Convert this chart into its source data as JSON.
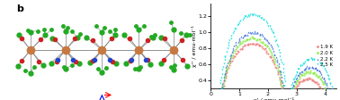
{
  "title": "",
  "xlabel": "χ' / emu·mol⁻¹",
  "ylabel": "χ'' / emu·mol⁻¹",
  "xlim": [
    0.0,
    4.4
  ],
  "ylim": [
    0.3,
    1.35
  ],
  "legend_labels": [
    "1.9 K",
    "2.0 K",
    "2.2 K",
    "2.5 K"
  ],
  "legend_colors": [
    "#f08080",
    "#90ee40",
    "#4169e1",
    "#00eeee"
  ],
  "legend_markers": [
    "o",
    "o",
    "^",
    "v"
  ],
  "xticks": [
    0,
    1,
    2,
    3,
    4
  ],
  "yticks": [
    0.4,
    0.6,
    0.8,
    1.0,
    1.2
  ],
  "label_b": "b",
  "figsize": [
    3.78,
    1.12
  ],
  "dpi": 100
}
